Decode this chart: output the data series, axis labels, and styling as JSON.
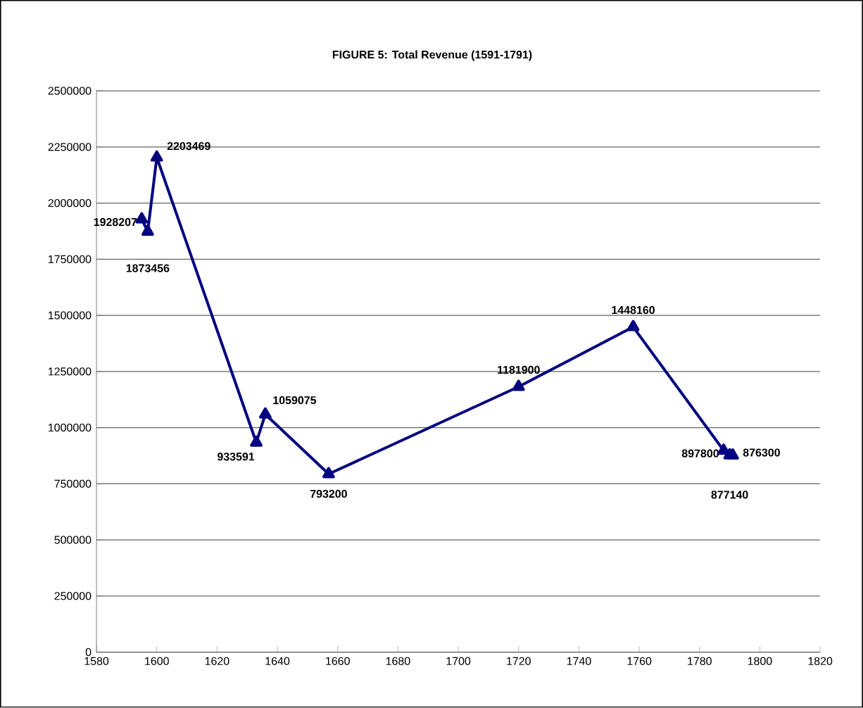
{
  "chart_data": {
    "type": "line",
    "title": "FIGURE 5: Total Revenue (1591-1791)",
    "x": [
      1595,
      1597,
      1600,
      1633,
      1636,
      1657,
      1720,
      1758,
      1788,
      1790,
      1791
    ],
    "series": [
      {
        "color": "#000080",
        "values": [
          1928207,
          1873456,
          2203469,
          933591,
          1059075,
          793200,
          1181900,
          1448160,
          897800,
          877140,
          876300
        ]
      }
    ],
    "xlim": [
      1580,
      1820
    ],
    "xticks": [
      1580,
      1600,
      1620,
      1640,
      1660,
      1680,
      1700,
      1720,
      1740,
      1760,
      1780,
      1800,
      1820
    ],
    "ylim": [
      0,
      2500000
    ],
    "yticks": [
      0,
      250000,
      500000,
      750000,
      1000000,
      1250000,
      1500000,
      1750000,
      2000000,
      2250000,
      2500000
    ],
    "grid": "y",
    "marker": "triangle",
    "line_style": "solid",
    "data_labels": true
  }
}
